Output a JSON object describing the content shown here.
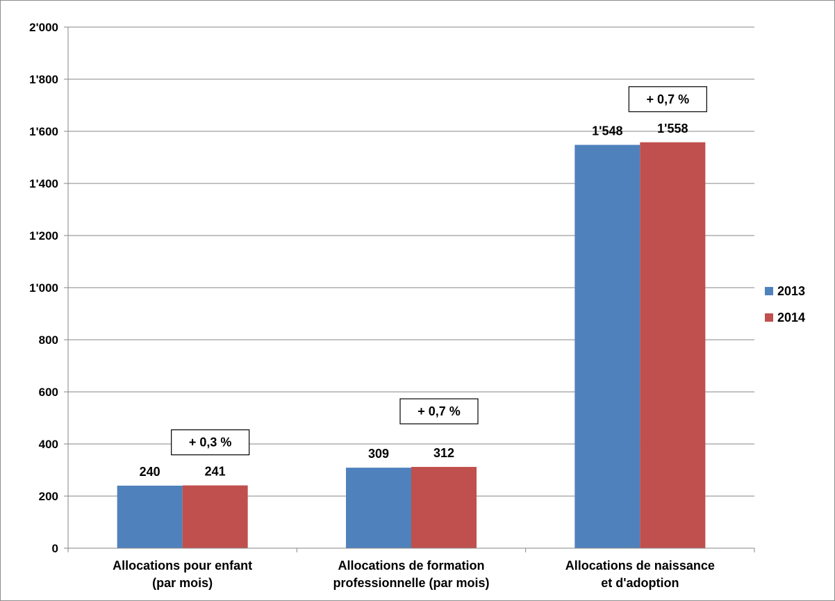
{
  "chart_data": {
    "type": "bar",
    "categories": [
      [
        "Allocations pour enfant",
        "(par mois)"
      ],
      [
        "Allocations de formation",
        "professionnelle (par mois)"
      ],
      [
        "Allocations de naissance",
        "et d'adoption"
      ]
    ],
    "series": [
      {
        "name": "2013",
        "color": "#4f81bd",
        "values": [
          240,
          309,
          1548
        ],
        "labels": [
          "240",
          "309",
          "1'548"
        ]
      },
      {
        "name": "2014",
        "color": "#c0504d",
        "values": [
          241,
          312,
          1558
        ],
        "labels": [
          "241",
          "312",
          "1'558"
        ]
      }
    ],
    "annotations": [
      "+ 0,3 %",
      "+ 0,7 %",
      "+ 0,7 %"
    ],
    "yticks": [
      {
        "value": 0,
        "label": "0"
      },
      {
        "value": 200,
        "label": "200"
      },
      {
        "value": 400,
        "label": "400"
      },
      {
        "value": 600,
        "label": "600"
      },
      {
        "value": 800,
        "label": "800"
      },
      {
        "value": 1000,
        "label": "1'000"
      },
      {
        "value": 1200,
        "label": "1'200"
      },
      {
        "value": 1400,
        "label": "1'400"
      },
      {
        "value": 1600,
        "label": "1'600"
      },
      {
        "value": 1800,
        "label": "1'800"
      },
      {
        "value": 2000,
        "label": "2'000"
      }
    ],
    "ylim": [
      0,
      2000
    ],
    "grid": true,
    "legend": "right",
    "title": "",
    "xlabel": "",
    "ylabel": ""
  }
}
